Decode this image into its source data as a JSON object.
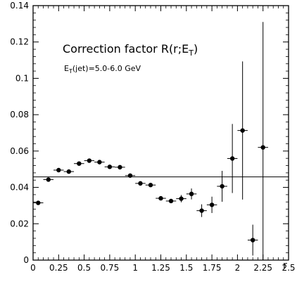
{
  "chart_data": {
    "type": "scatter",
    "title_main": "Correction factor R(r;E",
    "title_sub": "T",
    "title_end": ")",
    "subtitle_e": "E",
    "subtitle_sub": "T",
    "subtitle_rest": "(jet)=5.0-6.0 GeV",
    "xlabel": "r",
    "ylabel": "",
    "xlim": [
      0,
      2.5
    ],
    "ylim": [
      0,
      0.14
    ],
    "x_ticks": [
      0,
      0.25,
      0.5,
      0.75,
      1,
      1.25,
      1.5,
      1.75,
      2,
      2.25,
      2.5
    ],
    "x_tick_labels": [
      "0",
      "0.25",
      "0.5",
      "0.75",
      "1",
      "1.25",
      "1.5",
      "1.75",
      "2",
      "2.25",
      "2.5"
    ],
    "y_ticks": [
      0,
      0.02,
      0.04,
      0.06,
      0.08,
      0.1,
      0.12,
      0.14
    ],
    "y_tick_labels": [
      "0",
      "0.02",
      "0.04",
      "0.06",
      "0.08",
      "0.1",
      "0.12",
      "0.14"
    ],
    "reference_line": 0.0458,
    "grid": false,
    "series": [
      {
        "x_err": 0.05,
        "points": [
          {
            "x": 0.05,
            "y": 0.0315,
            "yerr": 0.0008
          },
          {
            "x": 0.15,
            "y": 0.0443,
            "yerr": 0.0008
          },
          {
            "x": 0.25,
            "y": 0.0495,
            "yerr": 0.0008
          },
          {
            "x": 0.35,
            "y": 0.0487,
            "yerr": 0.0008
          },
          {
            "x": 0.45,
            "y": 0.0531,
            "yerr": 0.0008
          },
          {
            "x": 0.55,
            "y": 0.0547,
            "yerr": 0.0008
          },
          {
            "x": 0.65,
            "y": 0.0539,
            "yerr": 0.0008
          },
          {
            "x": 0.75,
            "y": 0.0513,
            "yerr": 0.0008
          },
          {
            "x": 0.85,
            "y": 0.0511,
            "yerr": 0.0008
          },
          {
            "x": 0.95,
            "y": 0.0465,
            "yerr": 0.0008
          },
          {
            "x": 1.05,
            "y": 0.0422,
            "yerr": 0.0008
          },
          {
            "x": 1.15,
            "y": 0.0413,
            "yerr": 0.0008
          },
          {
            "x": 1.25,
            "y": 0.034,
            "yerr": 0.0008
          },
          {
            "x": 1.35,
            "y": 0.0325,
            "yerr": 0.0008
          },
          {
            "x": 1.45,
            "y": 0.0338,
            "yerr": 0.002
          },
          {
            "x": 1.55,
            "y": 0.0364,
            "yerr": 0.003
          },
          {
            "x": 1.65,
            "y": 0.0272,
            "yerr": 0.0035
          },
          {
            "x": 1.75,
            "y": 0.0304,
            "yerr": 0.0045
          },
          {
            "x": 1.85,
            "y": 0.0406,
            "yerr": 0.0085
          },
          {
            "x": 1.95,
            "y": 0.0559,
            "yerr": 0.019
          },
          {
            "x": 2.05,
            "y": 0.0713,
            "yerr": 0.038
          },
          {
            "x": 2.15,
            "y": 0.011,
            "yerr": 0.0085
          },
          {
            "x": 2.25,
            "y": 0.062,
            "yerr": 0.069
          }
        ]
      }
    ]
  }
}
